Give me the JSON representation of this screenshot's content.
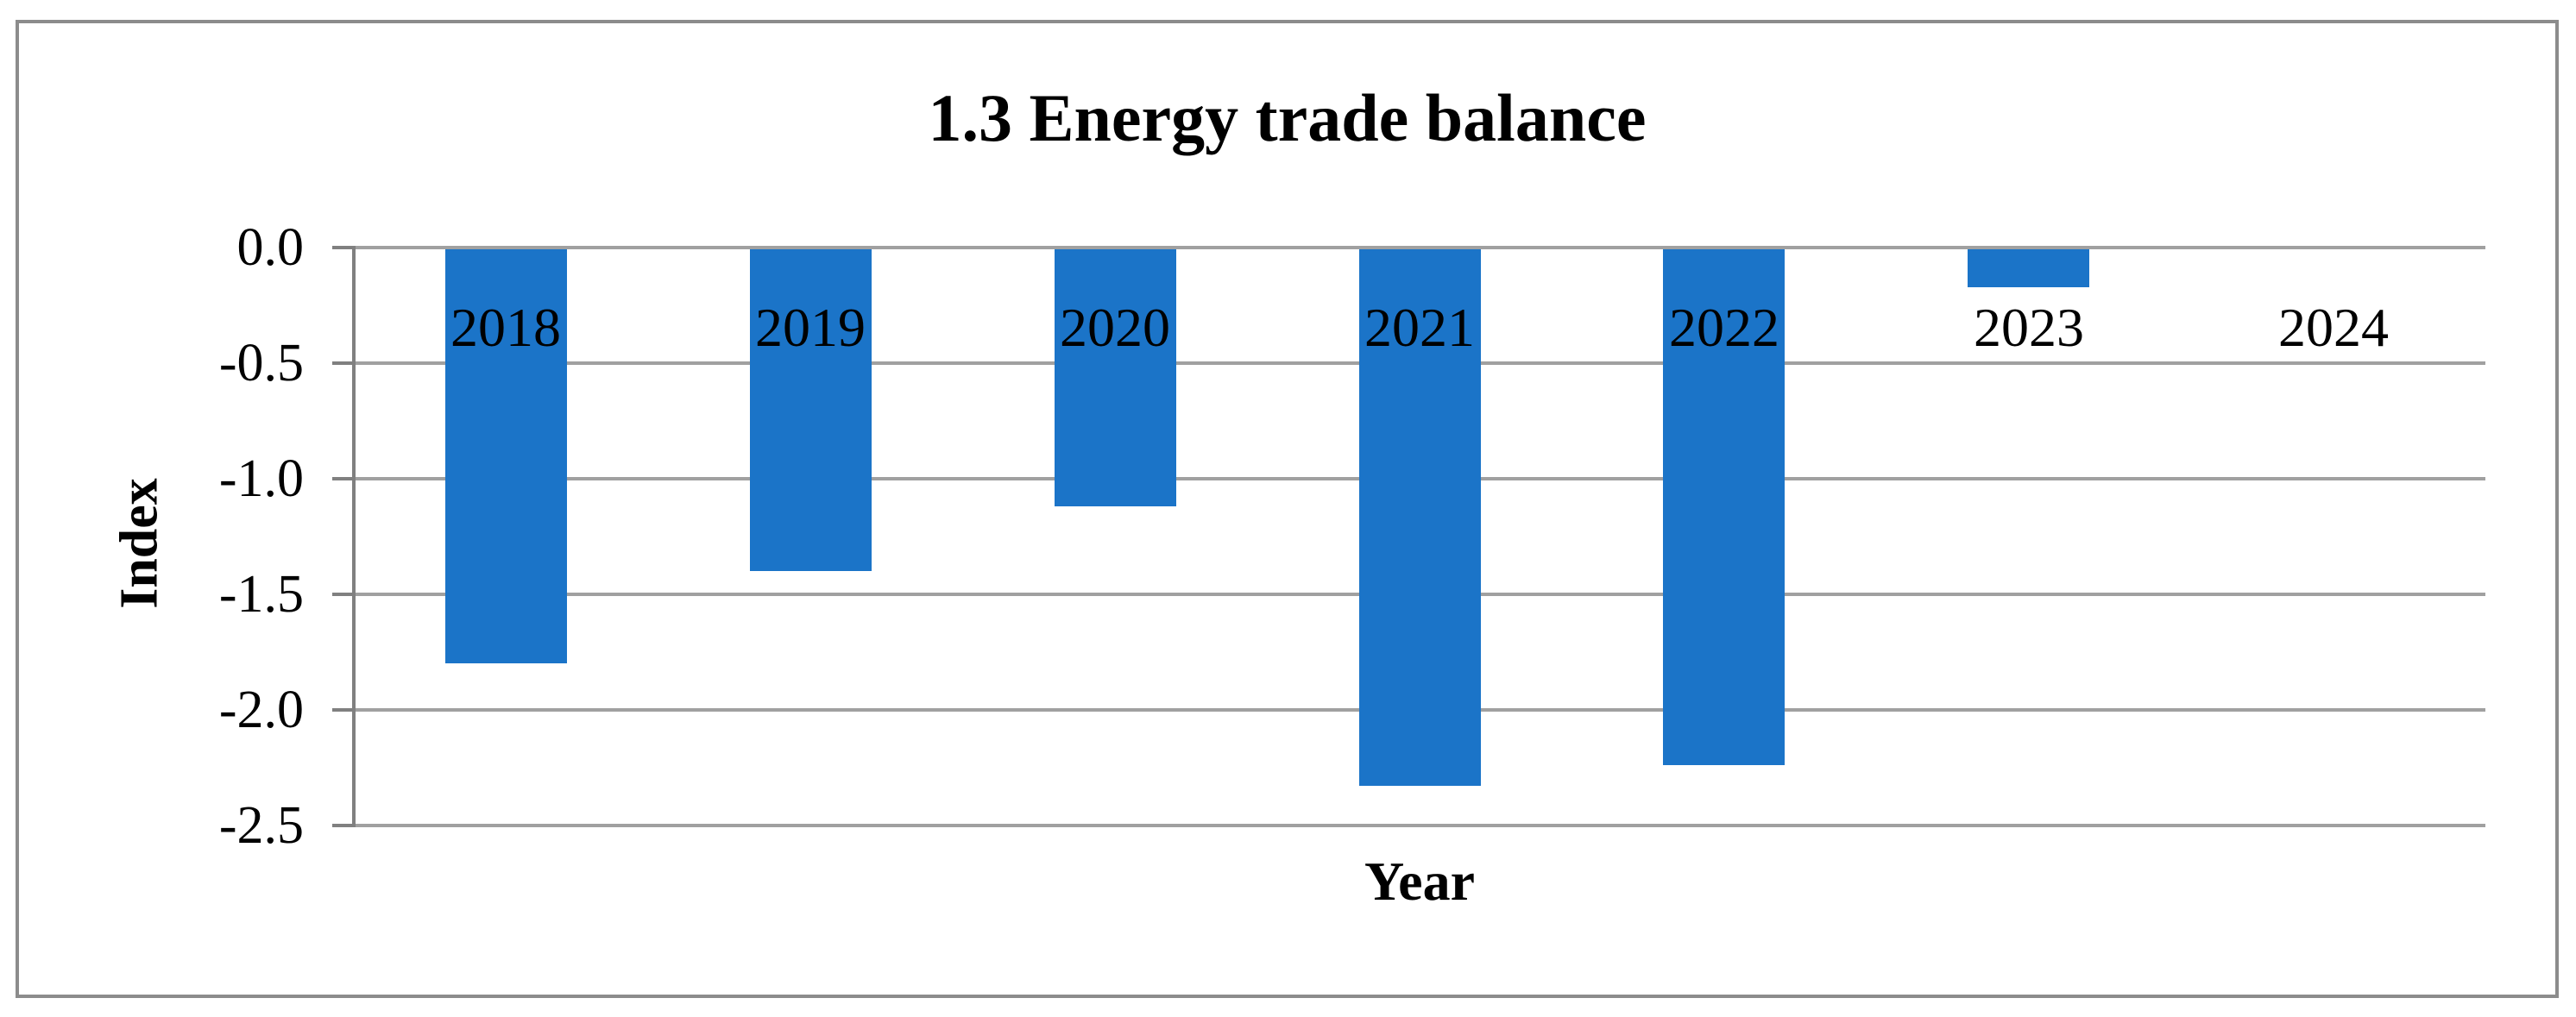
{
  "chart_data": {
    "type": "bar",
    "title": "1.3 Energy trade balance",
    "xlabel": "Year",
    "ylabel": "Index",
    "categories": [
      "2018",
      "2019",
      "2020",
      "2021",
      "2022",
      "2023",
      "2024"
    ],
    "values": [
      -1.8,
      -1.4,
      -1.12,
      -2.33,
      -2.24,
      -0.17,
      0.0
    ],
    "ylim": [
      -2.5,
      0.0
    ],
    "yticks": [
      0.0,
      -0.5,
      -1.0,
      -1.5,
      -2.0,
      -2.5
    ],
    "ytick_labels": [
      "0.0",
      "-0.5",
      "-1.0",
      "-1.5",
      "-2.0",
      "-2.5"
    ],
    "grid": true,
    "legend": false,
    "bar_color": "#1b74c8",
    "gridline_color": "#a0a0a0",
    "axis_color": "#808080",
    "figure_border_color": "#8c8c8c",
    "text_color": "#000000"
  }
}
